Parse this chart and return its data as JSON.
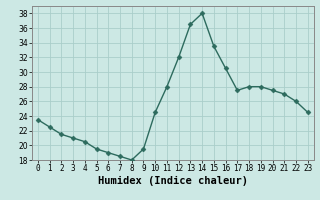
{
  "x": [
    0,
    1,
    2,
    3,
    4,
    5,
    6,
    7,
    8,
    9,
    10,
    11,
    12,
    13,
    14,
    15,
    16,
    17,
    18,
    19,
    20,
    21,
    22,
    23
  ],
  "y": [
    23.5,
    22.5,
    21.5,
    21.0,
    20.5,
    19.5,
    19.0,
    18.5,
    18.0,
    19.5,
    24.5,
    28.0,
    32.0,
    36.5,
    38.0,
    33.5,
    30.5,
    27.5,
    28.0,
    28.0,
    27.5,
    27.0,
    26.0,
    24.5
  ],
  "line_color": "#2d6b5e",
  "marker": "D",
  "marker_size": 2.5,
  "bg_color": "#cce8e4",
  "grid_color": "#aaceca",
  "xlabel": "Humidex (Indice chaleur)",
  "ylim": [
    18,
    39
  ],
  "xlim": [
    -0.5,
    23.5
  ],
  "yticks": [
    18,
    20,
    22,
    24,
    26,
    28,
    30,
    32,
    34,
    36,
    38
  ],
  "xticks": [
    0,
    1,
    2,
    3,
    4,
    5,
    6,
    7,
    8,
    9,
    10,
    11,
    12,
    13,
    14,
    15,
    16,
    17,
    18,
    19,
    20,
    21,
    22,
    23
  ],
  "xtick_labels": [
    "0",
    "1",
    "2",
    "3",
    "4",
    "5",
    "6",
    "7",
    "8",
    "9",
    "10",
    "11",
    "12",
    "13",
    "14",
    "15",
    "16",
    "17",
    "18",
    "19",
    "20",
    "21",
    "22",
    "23"
  ],
  "line_width": 1.0,
  "tick_fontsize": 5.5,
  "xlabel_fontsize": 7.5,
  "spine_color": "#888888"
}
